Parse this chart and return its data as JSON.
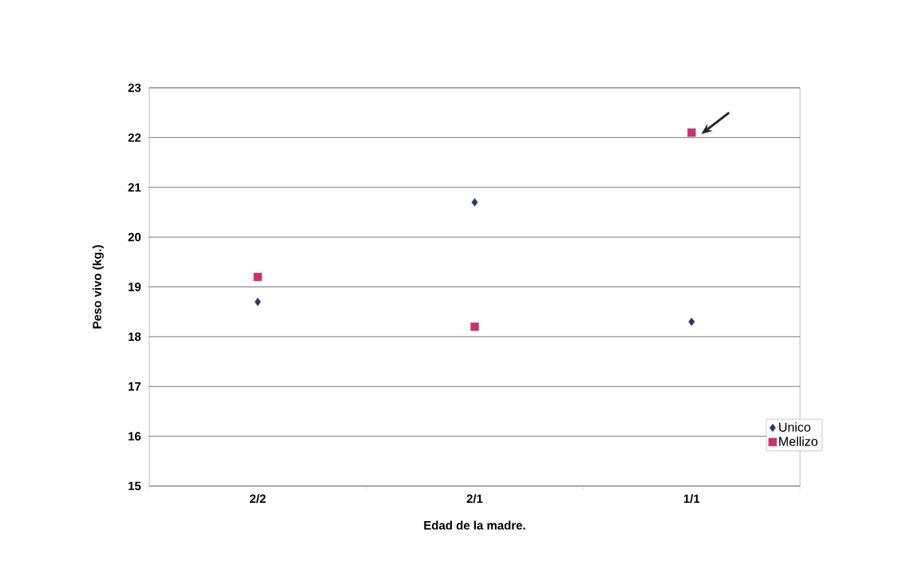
{
  "chart_data": {
    "type": "scatter",
    "xlabel": "Edad de la madre.",
    "ylabel": "Peso vivo (kg.)",
    "categories": [
      "2/2",
      "2/1",
      "1/1"
    ],
    "series": [
      {
        "name": "Unico",
        "color": "#2b3a67",
        "marker": "diamond",
        "values": [
          18.7,
          20.7,
          18.3
        ]
      },
      {
        "name": "Mellizo",
        "color": "#c8336b",
        "marker": "square",
        "values": [
          19.2,
          18.2,
          22.1
        ]
      }
    ],
    "ylim": [
      15,
      23
    ],
    "yticks": [
      15,
      16,
      17,
      18,
      19,
      20,
      21,
      22,
      23
    ],
    "grid": "y",
    "legend": "bottom right"
  }
}
